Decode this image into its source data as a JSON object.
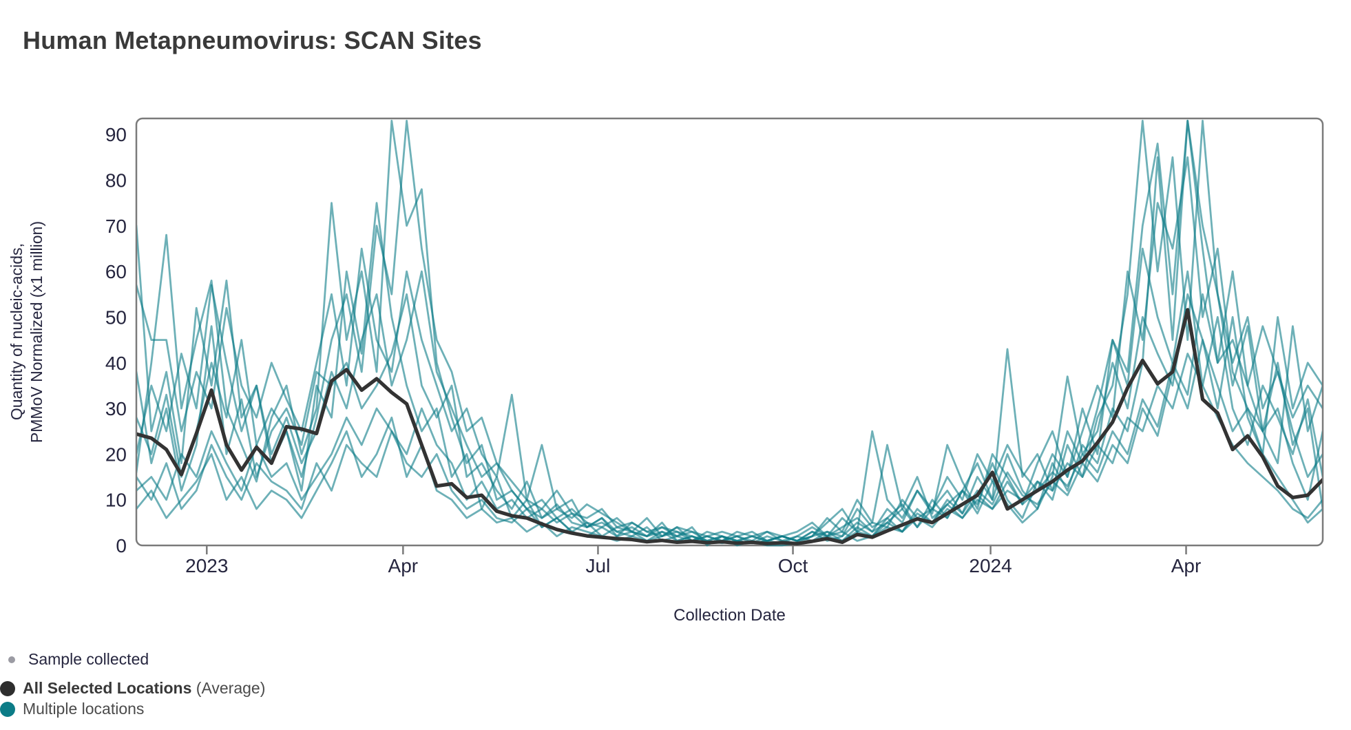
{
  "title": "Human Metapneumovirus: SCAN Sites",
  "colors": {
    "title_text": "#3a3a3a",
    "axis": "#7a7a7a",
    "tick_text": "#26263f",
    "average_line": "#333333",
    "location_line": "#0c7c87",
    "location_line_opacity": 0.6,
    "legend_sample_dot": "#9b9ba3",
    "legend_average_dot": "#2e2e2e",
    "legend_location_dot": "#0c7c87",
    "legend_text": "#4b4b4b"
  },
  "y_axis": {
    "label_line1": "Quantity of nucleic-acids,",
    "label_line2": "PMMoV Normalized (x1 million)",
    "ticks": [
      0,
      10,
      20,
      30,
      40,
      50,
      60,
      70,
      80,
      90
    ]
  },
  "x_axis": {
    "label": "Collection Date",
    "ticks": [
      {
        "label": "2023",
        "week": 4.69
      },
      {
        "label": "Apr",
        "week": 17.76
      },
      {
        "label": "Jul",
        "week": 30.74
      },
      {
        "label": "Oct",
        "week": 43.72
      },
      {
        "label": "2024",
        "week": 56.88
      },
      {
        "label": "Apr",
        "week": 69.9
      }
    ]
  },
  "legend": {
    "sample": "Sample collected",
    "average_bold": "All Selected Locations",
    "average_suffix": " (Average)",
    "locations": "Multiple locations"
  },
  "chart_data": {
    "type": "line",
    "title": "Human Metapneumovirus: SCAN Sites",
    "xlabel": "Collection Date",
    "ylabel": "Quantity of nucleic-acids, PMMoV Normalized (x1 million)",
    "x_unit": "weekly samples, week 0 = late Nov 2022, week 79 = early Jun 2024",
    "x_range": [
      "2022-11-27",
      "2024-06-05"
    ],
    "ylim": [
      0,
      93.5
    ],
    "grid": false,
    "legend_position": "bottom-left",
    "series": [
      {
        "name": "All Selected Locations (Average)",
        "role": "average",
        "values": [
          24.4,
          23.5,
          21,
          15.5,
          24.5,
          34,
          22,
          16.5,
          21.5,
          18,
          26,
          25.5,
          24.5,
          36,
          38.5,
          34,
          36.5,
          33.5,
          31,
          22,
          13,
          13.5,
          10.5,
          11,
          7.5,
          6.5,
          6,
          4.7,
          3.5,
          2.7,
          2.1,
          1.8,
          1.5,
          1.3,
          0.8,
          1.1,
          0.7,
          0.9,
          0.6,
          0.8,
          0.5,
          0.7,
          0.4,
          0.6,
          0.4,
          0.9,
          1.5,
          0.7,
          2.4,
          1.8,
          3.2,
          4.5,
          5.8,
          5,
          7,
          9,
          11,
          16,
          8,
          10,
          12,
          14,
          16.5,
          18.5,
          22.5,
          27,
          34.5,
          40.5,
          35.4,
          38,
          51.6,
          32,
          29,
          21,
          24,
          19.4,
          13,
          10.5,
          11,
          14.4
        ]
      },
      {
        "name": "Location 1",
        "role": "location",
        "values": [
          16,
          40,
          68,
          30,
          45,
          58,
          30,
          22,
          14,
          28,
          35,
          20,
          30,
          75,
          45,
          60,
          38,
          93,
          70,
          78,
          40,
          28,
          18,
          22,
          10,
          12,
          8,
          6,
          9,
          5,
          4,
          6,
          3,
          2,
          4,
          1,
          2,
          3,
          1,
          2,
          1,
          0.5,
          2,
          1,
          0.5,
          2,
          3,
          1,
          4,
          2,
          6,
          9,
          4,
          8,
          6,
          12,
          9,
          18,
          10,
          6,
          14,
          10,
          22,
          15,
          28,
          35,
          55,
          93,
          60,
          85,
          45,
          93,
          55,
          35,
          48,
          25,
          30,
          18,
          10,
          25
        ]
      },
      {
        "name": "Location 2",
        "role": "location",
        "values": [
          70,
          25,
          38,
          18,
          52,
          35,
          58,
          28,
          35,
          18,
          25,
          12,
          35,
          28,
          60,
          42,
          75,
          50,
          35,
          25,
          30,
          15,
          20,
          8,
          15,
          6,
          10,
          4,
          6,
          3,
          5,
          2,
          4,
          3,
          2,
          5,
          1,
          2,
          0.5,
          1,
          2,
          0.5,
          1,
          2,
          1,
          3,
          1,
          2,
          5,
          3,
          8,
          5,
          12,
          7,
          22,
          14,
          8,
          20,
          15,
          9,
          18,
          25,
          15,
          30,
          20,
          45,
          38,
          70,
          88,
          55,
          93,
          65,
          40,
          60,
          35,
          25,
          40,
          22,
          30,
          8
        ]
      },
      {
        "name": "Location 3",
        "role": "location",
        "values": [
          38,
          18,
          30,
          12,
          22,
          48,
          20,
          32,
          15,
          25,
          30,
          22,
          38,
          35,
          40,
          30,
          35,
          42,
          55,
          35,
          28,
          35,
          15,
          18,
          12,
          8,
          14,
          6,
          8,
          10,
          4,
          6,
          2,
          5,
          3,
          4,
          2,
          1,
          3,
          2,
          1,
          2,
          3,
          1,
          2,
          4,
          2,
          6,
          3,
          5,
          4,
          10,
          6,
          8,
          12,
          7,
          15,
          10,
          20,
          12,
          8,
          15,
          37,
          20,
          25,
          40,
          30,
          50,
          42,
          35,
          55,
          45,
          30,
          50,
          28,
          20,
          50,
          30,
          40,
          35
        ]
      },
      {
        "name": "Location 4",
        "role": "location",
        "values": [
          12,
          15,
          10,
          20,
          15,
          25,
          18,
          12,
          22,
          15,
          18,
          10,
          15,
          20,
          28,
          22,
          30,
          25,
          20,
          30,
          22,
          18,
          10,
          14,
          8,
          10,
          6,
          8,
          5,
          7,
          4,
          5,
          3,
          4,
          2,
          3,
          2,
          4,
          0,
          2,
          0,
          1,
          0,
          0,
          0.5,
          1,
          2,
          3,
          1,
          2,
          4,
          3,
          6,
          4,
          8,
          6,
          10,
          8,
          12,
          10,
          14,
          12,
          18,
          15,
          22,
          18,
          28,
          25,
          35,
          30,
          42,
          35,
          28,
          22,
          18,
          15,
          12,
          8,
          6,
          10
        ]
      },
      {
        "name": "Location 5",
        "role": "location",
        "values": [
          57,
          45,
          45,
          25,
          38,
          30,
          52,
          35,
          28,
          40,
          32,
          25,
          40,
          55,
          35,
          65,
          45,
          38,
          60,
          45,
          35,
          25,
          30,
          20,
          15,
          33,
          10,
          22,
          8,
          6,
          9,
          7,
          5,
          3,
          6,
          2,
          4,
          1,
          2,
          3,
          2,
          1,
          3,
          2,
          1,
          2,
          5,
          8,
          3,
          25,
          10,
          6,
          12,
          8,
          15,
          10,
          20,
          14,
          22,
          16,
          12,
          20,
          15,
          25,
          35,
          28,
          60,
          45,
          75,
          65,
          85,
          50,
          65,
          38,
          30,
          25,
          18,
          48,
          25,
          35
        ]
      },
      {
        "name": "Location 6",
        "role": "location",
        "values": [
          8,
          12,
          6,
          10,
          14,
          20,
          10,
          15,
          8,
          12,
          10,
          6,
          12,
          18,
          25,
          15,
          20,
          28,
          15,
          22,
          12,
          10,
          6,
          8,
          5,
          6,
          3,
          5,
          2,
          4,
          3,
          2,
          1,
          2,
          1,
          3,
          1,
          2,
          1,
          0.5,
          1,
          2,
          1,
          0.5,
          2,
          1,
          3,
          2,
          8,
          4,
          6,
          3,
          8,
          5,
          10,
          7,
          12,
          9,
          16,
          11,
          9,
          14,
          11,
          18,
          14,
          22,
          18,
          30,
          24,
          38,
          30,
          45,
          35,
          25,
          30,
          20,
          15,
          10,
          5,
          8
        ]
      },
      {
        "name": "Location 7",
        "role": "location",
        "values": [
          20,
          35,
          25,
          42,
          30,
          57,
          40,
          25,
          35,
          20,
          28,
          18,
          25,
          38,
          30,
          45,
          55,
          35,
          45,
          60,
          38,
          30,
          22,
          15,
          18,
          12,
          8,
          10,
          6,
          8,
          5,
          4,
          6,
          3,
          2,
          4,
          3,
          1,
          2,
          1,
          3,
          2,
          1,
          2,
          3,
          5,
          2,
          4,
          6,
          3,
          5,
          8,
          4,
          10,
          6,
          12,
          18,
          10,
          43,
          15,
          20,
          12,
          25,
          18,
          30,
          45,
          35,
          65,
          50,
          40,
          60,
          35,
          50,
          30,
          22,
          35,
          28,
          20,
          32,
          15
        ]
      },
      {
        "name": "Location 8",
        "role": "location",
        "values": [
          15,
          10,
          18,
          8,
          12,
          22,
          15,
          10,
          18,
          14,
          12,
          8,
          18,
          12,
          22,
          18,
          15,
          25,
          18,
          15,
          20,
          12,
          8,
          10,
          6,
          5,
          8,
          4,
          6,
          3,
          2,
          4,
          2,
          3,
          1,
          2,
          3,
          2,
          1,
          2,
          1,
          0.5,
          1,
          2,
          1,
          3,
          2,
          1,
          3,
          2,
          5,
          3,
          7,
          5,
          9,
          6,
          11,
          8,
          14,
          9,
          12,
          16,
          13,
          20,
          16,
          25,
          20,
          32,
          26,
          40,
          33,
          55,
          40,
          45,
          35,
          48,
          38,
          28,
          35,
          30
        ]
      },
      {
        "name": "Location 9",
        "role": "location",
        "values": [
          28,
          20,
          33,
          15,
          25,
          40,
          28,
          45,
          22,
          30,
          25,
          15,
          28,
          45,
          55,
          38,
          70,
          55,
          93,
          65,
          45,
          38,
          25,
          28,
          18,
          14,
          10,
          8,
          12,
          7,
          6,
          8,
          4,
          5,
          3,
          2,
          4,
          3,
          2,
          1,
          2,
          3,
          1,
          2,
          1,
          2,
          6,
          3,
          10,
          5,
          22,
          8,
          15,
          6,
          9,
          12,
          7,
          14,
          9,
          5,
          8,
          18,
          12,
          22,
          18,
          30,
          25,
          40,
          85,
          45,
          93,
          70,
          55,
          40,
          50,
          30,
          38,
          25,
          15,
          20
        ]
      }
    ]
  }
}
